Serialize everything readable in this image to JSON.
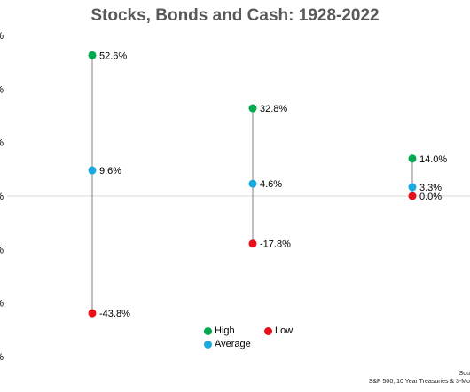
{
  "colors": {
    "high": "#00a84f",
    "average": "#1ba9e1",
    "low": "#e8101a",
    "title": "#595959",
    "gridline": "#d9d9d9",
    "range_line": "#808080"
  },
  "chart_data": {
    "type": "scatter",
    "title": "Stocks, Bonds and Cash: 1928-2022",
    "xlabel": "",
    "ylabel": "",
    "categories": [
      "",
      "",
      ""
    ],
    "ylim": [
      -60,
      60
    ],
    "y_tick_step": 20,
    "y_tick_suffix": "%",
    "grid": false,
    "zero_line": true,
    "legend_position": "bottom-center",
    "series": [
      {
        "name": "High",
        "values": [
          52.6,
          32.8,
          14.0
        ],
        "labels": [
          "52.6%",
          "32.8%",
          "14.0%"
        ],
        "color_key": "high"
      },
      {
        "name": "Average",
        "values": [
          9.6,
          4.6,
          3.3
        ],
        "labels": [
          "9.6%",
          "4.6%",
          "3.3%"
        ],
        "color_key": "average"
      },
      {
        "name": "Low",
        "values": [
          -43.8,
          -17.8,
          0.0
        ],
        "labels": [
          "-43.8%",
          "-17.8%",
          "0.0%"
        ],
        "color_key": "low"
      }
    ]
  },
  "legend": {
    "high": "High",
    "low": "Low",
    "average": "Average"
  },
  "source": {
    "line1": "Sou",
    "line2": "S&P 500, 10 Year Treasuries & 3-Mo"
  }
}
